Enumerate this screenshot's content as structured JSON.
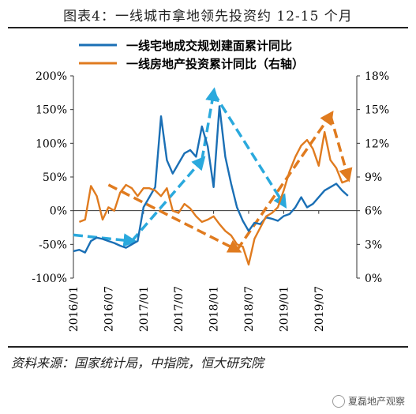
{
  "title": "图表4：一线城市拿地领先投资约 12-15 个月",
  "source": "资料来源：国家统计局，中指院，恒大研究院",
  "watermark": "夏磊地产观察",
  "colors": {
    "blue": "#1a6fb5",
    "orange": "#e07b1f",
    "blue_dash": "#2aa9dd",
    "orange_dash": "#e07b1f"
  },
  "chart_data": {
    "type": "line",
    "x_tick_labels": [
      "2016/01",
      "2016/07",
      "2017/01",
      "2017/07",
      "2018/01",
      "2018/07",
      "2019/01",
      "2019/07"
    ],
    "x_start": "2016/01",
    "y_left": {
      "ticks": [
        "200%",
        "150%",
        "100%",
        "50%",
        "0%",
        "-50%",
        "-100%"
      ],
      "range": [
        -100,
        200
      ]
    },
    "y_right": {
      "ticks": [
        "18%",
        "15%",
        "12%",
        "9%",
        "6%",
        "3%",
        "0%"
      ],
      "range": [
        0,
        18
      ]
    },
    "legend": [
      {
        "name": "一线宅地成交规划建面累计同比",
        "color": "#1a6fb5"
      },
      {
        "name": "一线房地产投资累计同比（右轴）",
        "color": "#e07b1f"
      }
    ],
    "series": [
      {
        "name": "一线宅地成交规划建面累计同比",
        "axis": "left",
        "color": "#1a6fb5",
        "x": [
          "2016/01",
          "2016/02",
          "2016/03",
          "2016/04",
          "2016/05",
          "2016/06",
          "2016/07",
          "2016/08",
          "2016/09",
          "2016/10",
          "2016/11",
          "2016/12",
          "2017/01",
          "2017/02",
          "2017/03",
          "2017/04",
          "2017/05",
          "2017/06",
          "2017/07",
          "2017/08",
          "2017/09",
          "2017/10",
          "2017/11",
          "2017/12",
          "2018/01",
          "2018/02",
          "2018/03",
          "2018/04",
          "2018/05",
          "2018/06",
          "2018/07",
          "2018/08",
          "2018/09",
          "2018/10",
          "2018/11",
          "2018/12",
          "2019/01",
          "2019/02",
          "2019/03",
          "2019/04",
          "2019/05",
          "2019/06",
          "2019/07",
          "2019/08",
          "2019/09",
          "2019/10",
          "2019/11",
          "2019/12"
        ],
        "values": [
          -60,
          -58,
          -62,
          -45,
          -40,
          -42,
          -45,
          -48,
          -52,
          -55,
          -50,
          -45,
          5,
          20,
          35,
          140,
          75,
          55,
          70,
          85,
          90,
          80,
          125,
          95,
          35,
          155,
          80,
          40,
          5,
          -15,
          -30,
          -18,
          -20,
          -10,
          -12,
          -15,
          -8,
          -5,
          5,
          20,
          5,
          10,
          20,
          30,
          35,
          40,
          30,
          22
        ]
      },
      {
        "name": "一线房地产投资累计同比（右轴）",
        "axis": "right",
        "color": "#e07b1f",
        "x": [
          "2016/02",
          "2016/03",
          "2016/04",
          "2016/05",
          "2016/06",
          "2016/07",
          "2016/08",
          "2016/09",
          "2016/10",
          "2016/11",
          "2016/12",
          "2017/01",
          "2017/02",
          "2017/03",
          "2017/04",
          "2017/05",
          "2017/06",
          "2017/07",
          "2017/08",
          "2017/09",
          "2017/10",
          "2017/11",
          "2017/12",
          "2018/01",
          "2018/02",
          "2018/03",
          "2018/04",
          "2018/05",
          "2018/06",
          "2018/07",
          "2018/08",
          "2018/09",
          "2018/10",
          "2018/11",
          "2018/12",
          "2019/01",
          "2019/02",
          "2019/03",
          "2019/04",
          "2019/05",
          "2019/06",
          "2019/07",
          "2019/08",
          "2019/09",
          "2019/10",
          "2019/11",
          "2019/12"
        ],
        "values": [
          5.0,
          5.2,
          8.2,
          7.3,
          5.2,
          6.3,
          6.0,
          7.6,
          8.3,
          8.0,
          7.3,
          8.0,
          8.0,
          7.8,
          7.3,
          8.0,
          6.0,
          5.8,
          6.6,
          6.2,
          5.5,
          5.0,
          5.2,
          5.5,
          4.8,
          4.2,
          3.8,
          3.0,
          2.8,
          1.2,
          3.5,
          4.5,
          5.5,
          5.8,
          6.3,
          7.8,
          9.5,
          10.8,
          11.8,
          12.3,
          11.5,
          10.0,
          13.0,
          10.5,
          9.8,
          8.5,
          8.7
        ]
      }
    ],
    "trend_arrows": [
      {
        "color": "#2aa9dd",
        "axis": "left",
        "points": [
          [
            "2016/01",
            -36
          ],
          [
            "2016/11",
            -45
          ],
          [
            "2017/11",
            75
          ],
          [
            "2018/01",
            175
          ],
          [
            "2019/01",
            10
          ]
        ]
      },
      {
        "color": "#e07b1f",
        "axis": "right",
        "points": [
          [
            "2016/07",
            8.3
          ],
          [
            "2018/05",
            2.5
          ],
          [
            "2019/09",
            14.5
          ],
          [
            "2019/12",
            9.0
          ]
        ]
      }
    ]
  }
}
